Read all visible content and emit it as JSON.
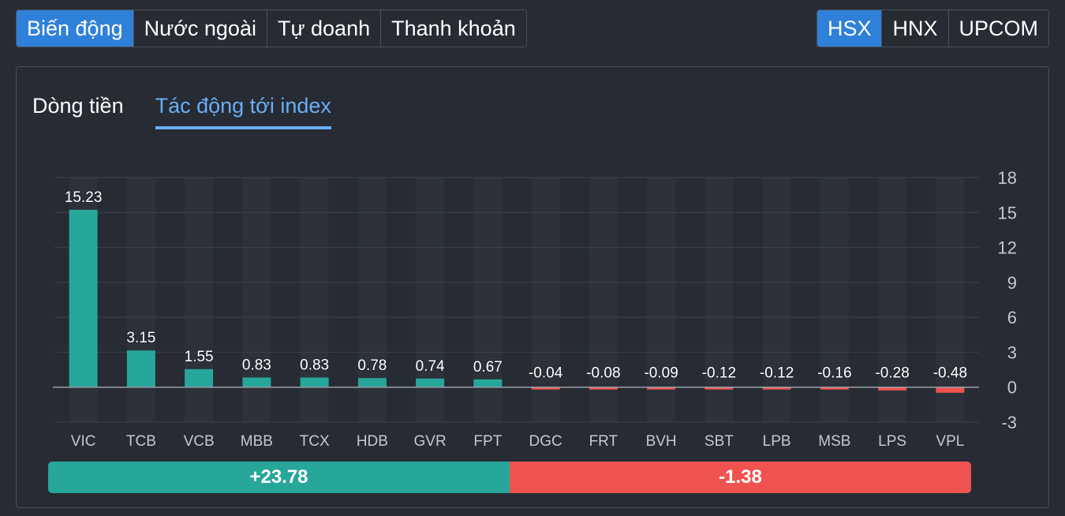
{
  "top_tabs": [
    {
      "label": "Biến động",
      "active": true
    },
    {
      "label": "Nước ngoài",
      "active": false
    },
    {
      "label": "Tự doanh",
      "active": false
    },
    {
      "label": "Thanh khoản",
      "active": false
    }
  ],
  "exchanges": [
    {
      "label": "HSX",
      "active": true
    },
    {
      "label": "HNX",
      "active": false
    },
    {
      "label": "UPCOM",
      "active": false
    }
  ],
  "sub_tabs": [
    {
      "label": "Dòng tiền",
      "active": false
    },
    {
      "label": "Tác động tới index",
      "active": true
    }
  ],
  "colors": {
    "positive": "#27a69a",
    "negative": "#ef5350",
    "accent": "#2f80d8",
    "active_subtab": "#6aaef2"
  },
  "chart_data": {
    "type": "bar",
    "categories": [
      "VIC",
      "TCB",
      "VCB",
      "MBB",
      "TCX",
      "HDB",
      "GVR",
      "FPT",
      "DGC",
      "FRT",
      "BVH",
      "SBT",
      "LPB",
      "MSB",
      "LPS",
      "VPL"
    ],
    "values": [
      15.23,
      3.15,
      1.55,
      0.83,
      0.83,
      0.78,
      0.74,
      0.67,
      -0.04,
      -0.08,
      -0.09,
      -0.12,
      -0.12,
      -0.16,
      -0.28,
      -0.48
    ],
    "value_labels": [
      "15.23",
      "3.15",
      "1.55",
      "0.83",
      "0.83",
      "0.78",
      "0.74",
      "0.67",
      "-0.04",
      "-0.08",
      "-0.09",
      "-0.12",
      "-0.12",
      "-0.16",
      "-0.28",
      "-0.48"
    ],
    "ylim": [
      -3,
      18
    ],
    "yticks": [
      "18",
      "15",
      "12",
      "9",
      "6",
      "3",
      "0",
      "-3"
    ],
    "ytick_values": [
      18,
      15,
      12,
      9,
      6,
      3,
      0,
      -3
    ],
    "y_axis_side": "right",
    "grid": true
  },
  "summary": {
    "positive_total": "+23.78",
    "negative_total": "-1.38",
    "positive_value": 23.78,
    "negative_value": 1.38
  }
}
